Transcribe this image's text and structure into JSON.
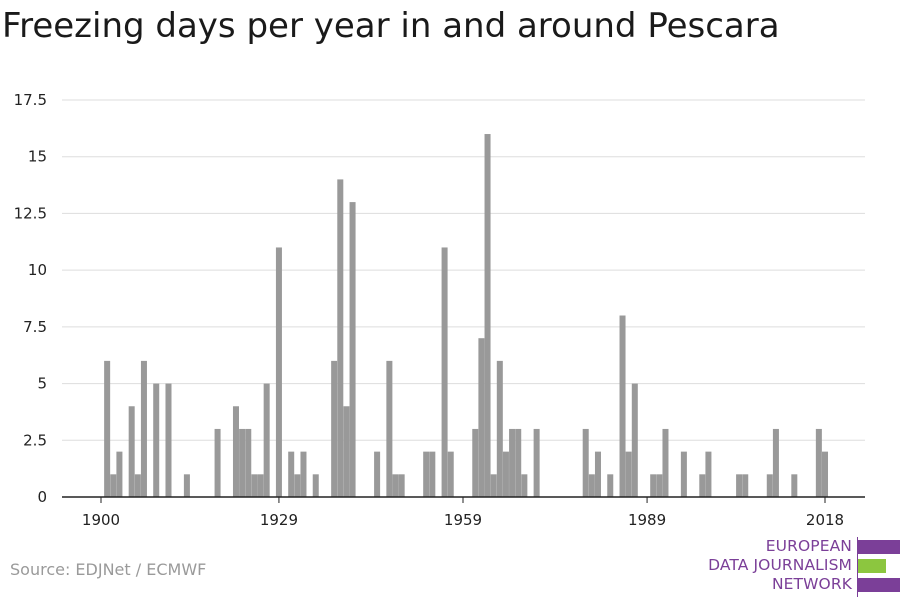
{
  "title": "Freezing days per year in and around Pescara",
  "source": "Source: EDJNet / ECMWF",
  "logo": {
    "lines": [
      "EUROPEAN",
      "DATA JOURNALISM",
      "NETWORK"
    ],
    "colors": {
      "purple": "#7b3f98",
      "green": "#8cc63f"
    }
  },
  "chart_data": {
    "type": "bar",
    "bar_color": "#999999",
    "xlabel": "",
    "ylabel": "",
    "ylim": [
      0,
      17.5
    ],
    "xlim": [
      1895,
      2025
    ],
    "grid": true,
    "y_ticks": [
      0,
      2.5,
      5,
      7.5,
      10,
      12.5,
      15,
      17.5
    ],
    "y_tick_labels": [
      "0",
      "2.5",
      "5",
      "7.5",
      "10",
      "12.5",
      "15",
      "17.5"
    ],
    "x_ticks": [
      1900,
      1929,
      1959,
      1989,
      2018
    ],
    "x_tick_labels": [
      "1900",
      "1929",
      "1959",
      "1989",
      "2018"
    ],
    "x": [
      1901,
      1902,
      1903,
      1905,
      1906,
      1907,
      1909,
      1911,
      1914,
      1919,
      1922,
      1923,
      1924,
      1925,
      1926,
      1927,
      1929,
      1931,
      1932,
      1933,
      1935,
      1938,
      1939,
      1940,
      1941,
      1945,
      1947,
      1948,
      1949,
      1953,
      1954,
      1956,
      1957,
      1961,
      1962,
      1963,
      1964,
      1965,
      1966,
      1967,
      1968,
      1969,
      1971,
      1979,
      1980,
      1981,
      1983,
      1985,
      1986,
      1987,
      1990,
      1991,
      1992,
      1995,
      1998,
      1999,
      2004,
      2005,
      2009,
      2010,
      2013,
      2017,
      2018
    ],
    "values": [
      6,
      1,
      2,
      4,
      1,
      6,
      5,
      5,
      1,
      3,
      4,
      3,
      3,
      1,
      1,
      5,
      11,
      2,
      1,
      2,
      1,
      6,
      14,
      4,
      13,
      2,
      6,
      1,
      1,
      2,
      2,
      11,
      2,
      3,
      7,
      16,
      1,
      6,
      2,
      3,
      3,
      1,
      3,
      3,
      1,
      2,
      1,
      8,
      2,
      5,
      1,
      1,
      3,
      2,
      1,
      2,
      1,
      1,
      1,
      3,
      1,
      3,
      2
    ]
  }
}
